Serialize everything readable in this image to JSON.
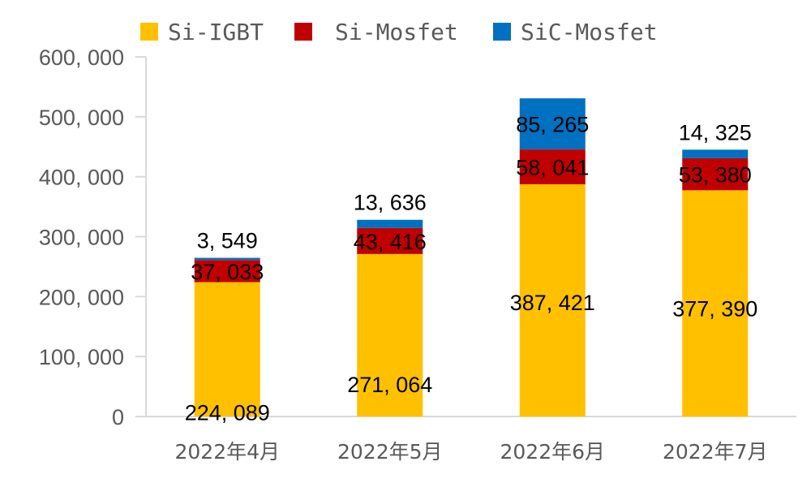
{
  "chart_data": {
    "type": "bar",
    "stacked": true,
    "title": "",
    "xlabel": "",
    "ylabel": "",
    "categories": [
      "2022年4月",
      "2022年5月",
      "2022年6月",
      "2022年7月"
    ],
    "series": [
      {
        "name": "Si-IGBT",
        "color": "#FFC000",
        "values": [
          224089,
          271064,
          387421,
          377390
        ],
        "labels": [
          "224, 089",
          "271, 064",
          "387, 421",
          "377, 390"
        ]
      },
      {
        "name": "Si-Mosfet",
        "color": "#C00000",
        "values": [
          37033,
          43416,
          58041,
          53380
        ],
        "labels": [
          "37, 033",
          "43, 416",
          "58, 041",
          "53, 380"
        ]
      },
      {
        "name": "SiC-Mosfet",
        "color": "#0070C0",
        "values": [
          3549,
          13636,
          85265,
          14325
        ],
        "labels": [
          "3, 549",
          "13, 636",
          "85, 265",
          "14, 325"
        ]
      }
    ],
    "ylim": [
      0,
      600000
    ],
    "yticks": [
      0,
      100000,
      200000,
      300000,
      400000,
      500000,
      600000
    ],
    "ytick_labels": [
      "0",
      "100, 000",
      "200, 000",
      "300, 000",
      "400, 000",
      "500, 000",
      "600, 000"
    ],
    "grid": false,
    "legend_position": "top"
  }
}
